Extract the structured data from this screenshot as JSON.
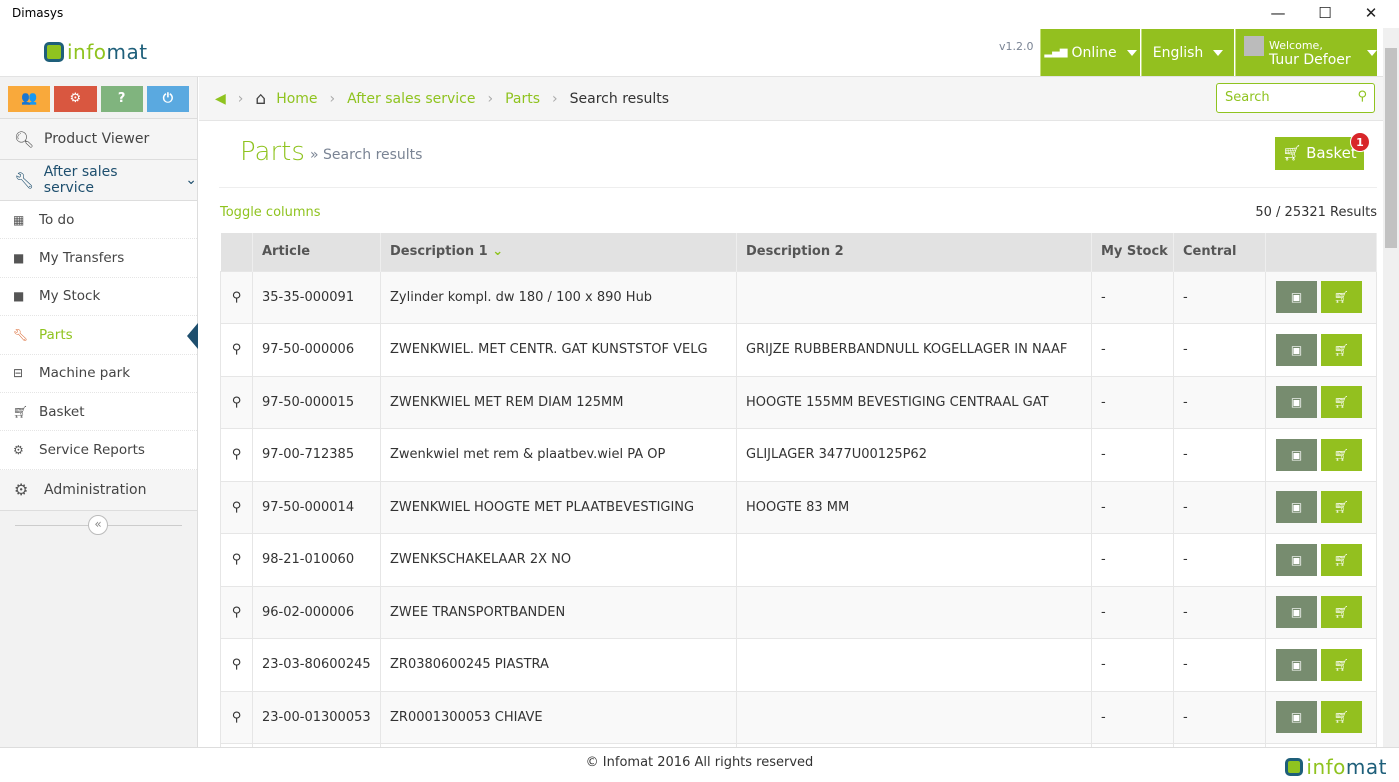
{
  "window": {
    "title": "Dimasys",
    "minimize": "—",
    "maximize": "☐",
    "close": "✕"
  },
  "header": {
    "logo_a": "info",
    "logo_b": "mat",
    "version": "v1.2.0",
    "online": "Online",
    "language": "English",
    "welcome": "Welcome,",
    "user": "Tuur Defoer"
  },
  "sidebar": {
    "buttons": [
      {
        "icon": "users-icon",
        "color": "#f9a93b"
      },
      {
        "icon": "gears-icon",
        "color": "#d95740"
      },
      {
        "icon": "help-icon",
        "label": "?",
        "color": "#80b47e"
      },
      {
        "icon": "power-icon",
        "color": "#5aa9e0"
      }
    ],
    "product_viewer": "Product Viewer",
    "after_sales": "After sales service",
    "items": [
      {
        "label": "To do",
        "icon": "calendar-icon"
      },
      {
        "label": "My Transfers",
        "icon": "truck-icon"
      },
      {
        "label": "My Stock",
        "icon": "briefcase-icon"
      },
      {
        "label": "Parts",
        "icon": "wrench-icon",
        "active": true
      },
      {
        "label": "Machine park",
        "icon": "machine-icon"
      },
      {
        "label": "Basket",
        "icon": "cart-icon"
      },
      {
        "label": "Service Reports",
        "icon": "gears-icon"
      }
    ],
    "administration": "Administration"
  },
  "breadcrumb": [
    "Home",
    "After sales service",
    "Parts",
    "Search results"
  ],
  "search": {
    "placeholder": "Search"
  },
  "page": {
    "title": "Parts",
    "subtitle": "» Search results",
    "basket": "Basket",
    "basket_count": "1",
    "toggle": "Toggle columns",
    "results": "50 / 25321 Results"
  },
  "table": {
    "headers": [
      "",
      "Article",
      "Description 1",
      "Description 2",
      "My Stock",
      "Central",
      ""
    ],
    "rows": [
      [
        "35-35-000091",
        "Zylinder kompl. dw 180 / 100 x 890 Hub",
        "",
        "-",
        "-"
      ],
      [
        "97-50-000006",
        "ZWENKWIEL. MET CENTR. GAT KUNSTSTOF VELG",
        "GRIJZE RUBBERBANDNULL KOGELLAGER IN NAAF",
        "-",
        "-"
      ],
      [
        "97-50-000015",
        "ZWENKWIEL MET REM DIAM 125MM",
        "HOOGTE 155MM BEVESTIGING CENTRAAL GAT",
        "-",
        "-"
      ],
      [
        "97-00-712385",
        "Zwenkwiel met rem & plaatbev.wiel PA OP",
        "GLIJLAGER 3477U00125P62",
        "-",
        "-"
      ],
      [
        "97-50-000014",
        "ZWENKWIEL HOOGTE MET PLAATBEVESTIGING",
        "HOOGTE 83 MM",
        "-",
        "-"
      ],
      [
        "98-21-010060",
        "ZWENKSCHAKELAAR 2X NO",
        "",
        "-",
        "-"
      ],
      [
        "96-02-000006",
        "ZWEE TRANSPORTBANDEN",
        "",
        "-",
        "-"
      ],
      [
        "23-03-80600245",
        "ZR0380600245 PIASTRA",
        "",
        "-",
        "-"
      ],
      [
        "23-00-01300053",
        "ZR0001300053 CHIAVE",
        "",
        "-",
        "-"
      ],
      [
        "",
        "",
        "",
        "",
        ""
      ]
    ]
  },
  "footer": {
    "text": "© Infomat 2016 All rights reserved"
  },
  "colors": {
    "accent": "#93c01f",
    "brand_dark": "#1e5f7a"
  }
}
